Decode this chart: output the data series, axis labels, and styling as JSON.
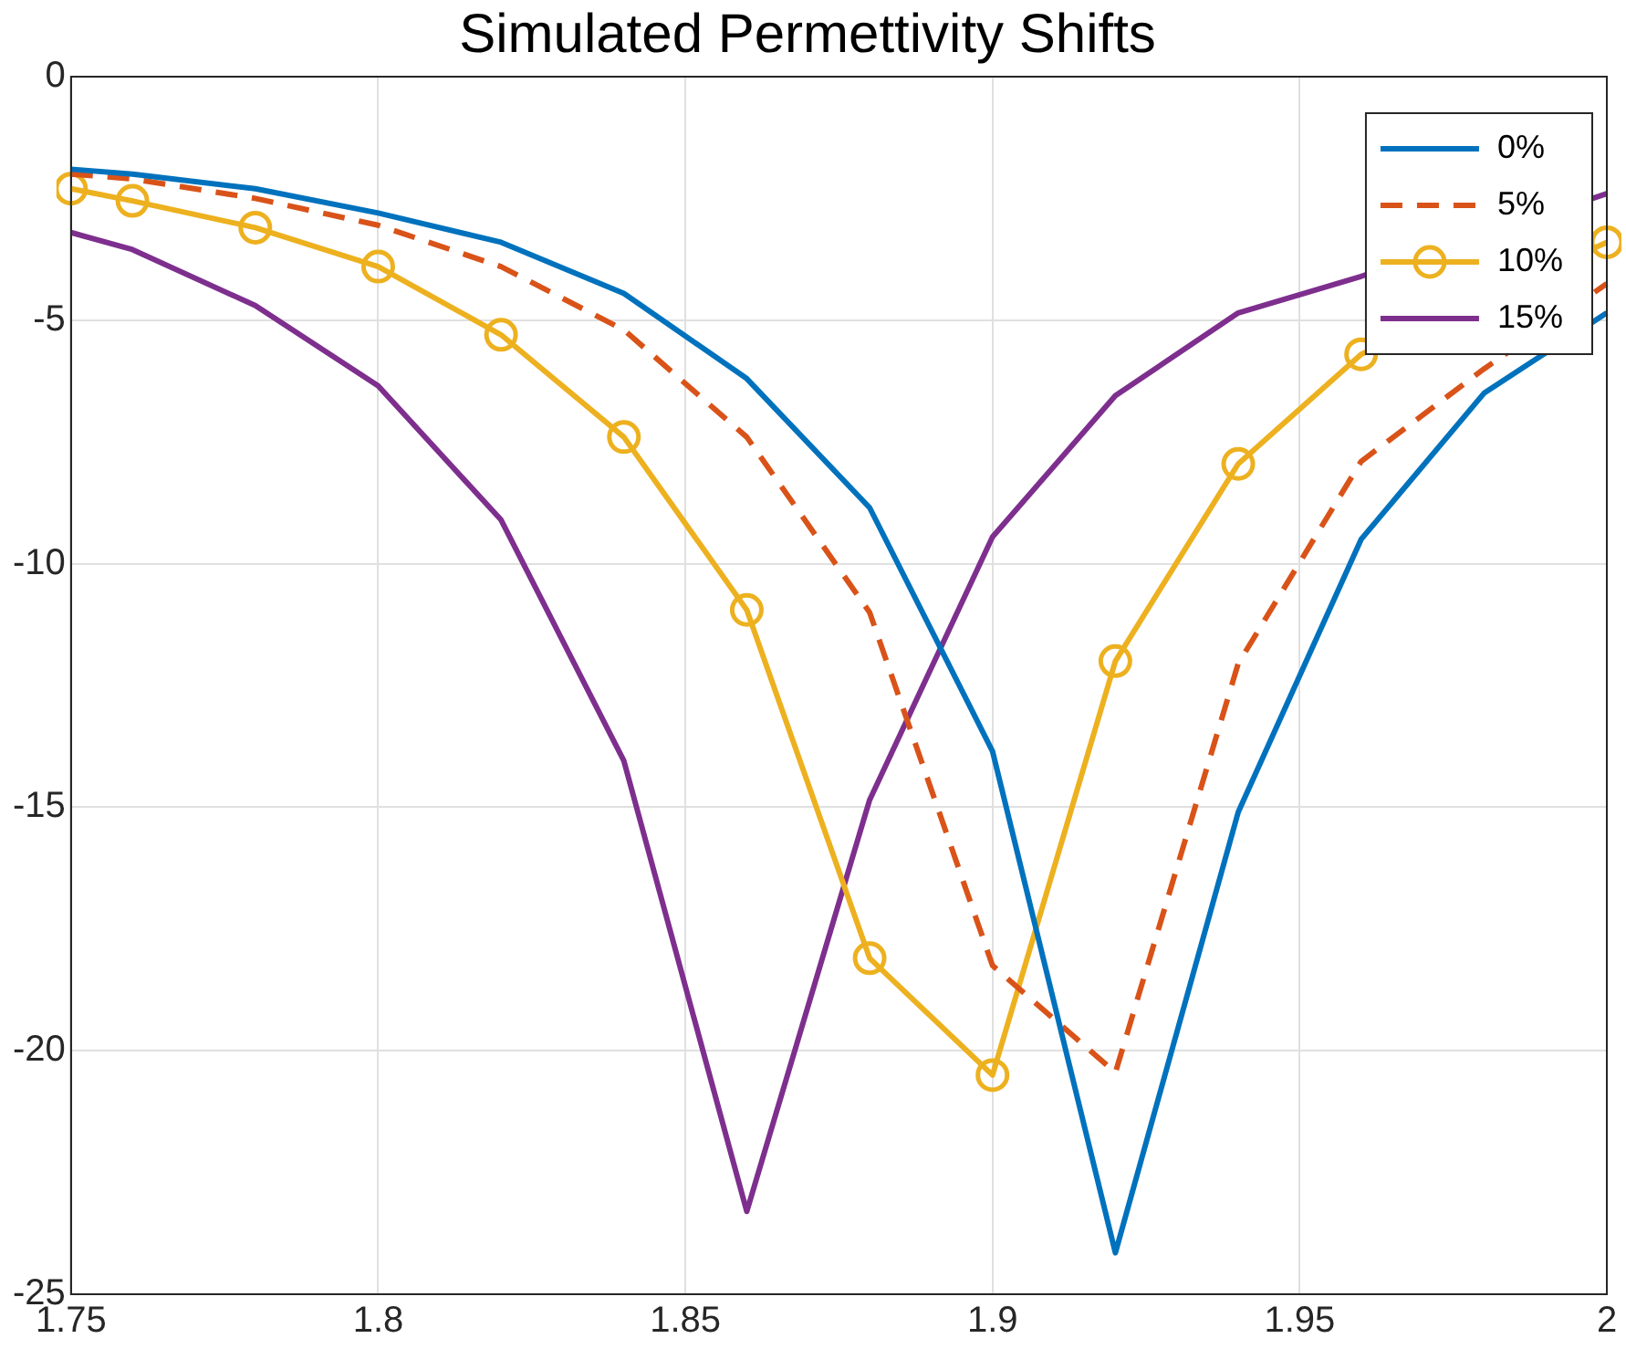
{
  "chart_data": {
    "type": "line",
    "title": "Simulated Permettivity Shifts",
    "x": [
      1.75,
      1.76,
      1.78,
      1.8,
      1.82,
      1.84,
      1.86,
      1.88,
      1.9,
      1.92,
      1.94,
      1.96,
      1.98,
      2.0
    ],
    "series": [
      {
        "name": "0%",
        "color": "#0072bd",
        "line_style": "solid",
        "marker": "none",
        "values": [
          -1.9,
          -2.0,
          -2.3,
          -2.8,
          -3.4,
          -4.45,
          -6.2,
          -8.85,
          -13.85,
          -24.15,
          -15.1,
          -9.5,
          -6.5,
          -4.85
        ]
      },
      {
        "name": "5%",
        "color": "#d95319",
        "line_style": "dashed",
        "marker": "none",
        "values": [
          -2.0,
          -2.1,
          -2.5,
          -3.05,
          -3.9,
          -5.2,
          -7.4,
          -11.0,
          -18.25,
          -20.45,
          -12.05,
          -7.9,
          -6.0,
          -4.25
        ]
      },
      {
        "name": "10%",
        "color": "#edb120",
        "line_style": "solid",
        "marker": "circle",
        "values": [
          -2.3,
          -2.55,
          -3.1,
          -3.9,
          -5.3,
          -7.4,
          -10.95,
          -18.1,
          -20.5,
          -12.0,
          -7.95,
          -5.7,
          null,
          -3.4
        ]
      },
      {
        "name": "15%",
        "color": "#7e2f8e",
        "line_style": "solid",
        "marker": "none",
        "values": [
          -3.2,
          -3.55,
          -4.7,
          -6.35,
          -9.1,
          -14.05,
          -23.3,
          -14.85,
          -9.45,
          -6.55,
          -4.85,
          -4.1,
          null,
          -2.4
        ]
      }
    ],
    "xlim": [
      1.75,
      2
    ],
    "xticks": [
      1.75,
      1.8,
      1.85,
      1.9,
      1.95,
      2
    ],
    "ylim": [
      -25,
      0
    ],
    "yticks": [
      -25,
      -20,
      -15,
      -10,
      -5,
      0
    ],
    "grid": true,
    "legend": "top right"
  }
}
